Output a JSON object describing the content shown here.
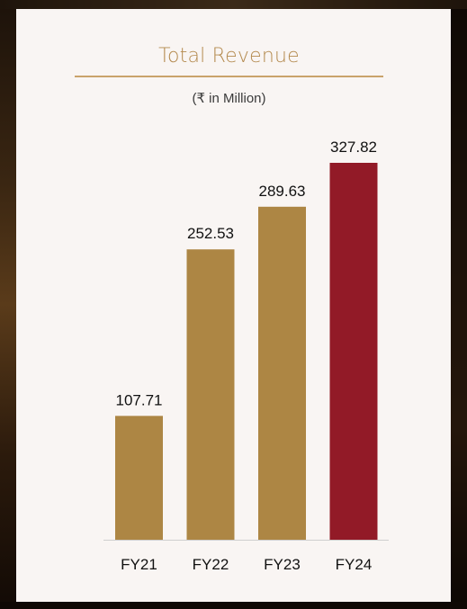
{
  "chart_data": {
    "type": "bar",
    "title": "Total Revenue",
    "subtitle": "(₹ in Million)",
    "categories": [
      "FY21",
      "FY22",
      "FY23",
      "FY24"
    ],
    "values": [
      107.71,
      252.53,
      289.63,
      327.82
    ],
    "value_labels": [
      "107.71",
      "252.53",
      "289.63",
      "327.82"
    ],
    "bar_colors": [
      "#ad8644",
      "#ad8644",
      "#ad8644",
      "#921a27"
    ],
    "ylim": [
      0,
      327.82
    ],
    "grid": false,
    "legend": "none"
  },
  "colors": {
    "title": "#b48a4e",
    "card_background": "#f9f5f3",
    "baseline": "#cfcfcf"
  }
}
